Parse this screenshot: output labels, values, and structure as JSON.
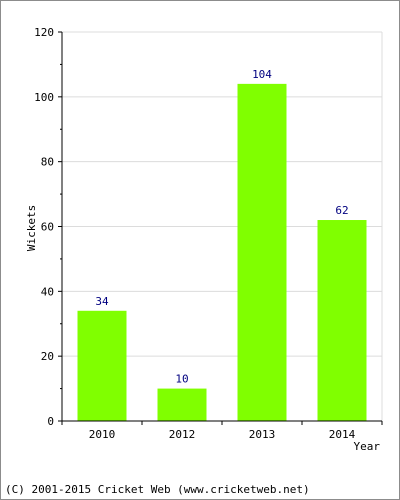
{
  "chart_data": {
    "type": "bar",
    "categories": [
      "2010",
      "2012",
      "2013",
      "2014"
    ],
    "values": [
      34,
      10,
      104,
      62
    ],
    "xlabel": "Year",
    "ylabel": "Wickets",
    "ylim": [
      0,
      120
    ],
    "yticks": [
      "0",
      "20",
      "40",
      "60",
      "80",
      "100",
      "120"
    ],
    "data_labels": [
      "34",
      "10",
      "104",
      "62"
    ],
    "grid": true,
    "colors": {
      "bar": "#80ff00",
      "value_label": "#000080",
      "grid": "#dcdcdc",
      "axis": "#000000"
    }
  },
  "footer": {
    "copyright": "(C) 2001-2015 Cricket Web (www.cricketweb.net)"
  }
}
